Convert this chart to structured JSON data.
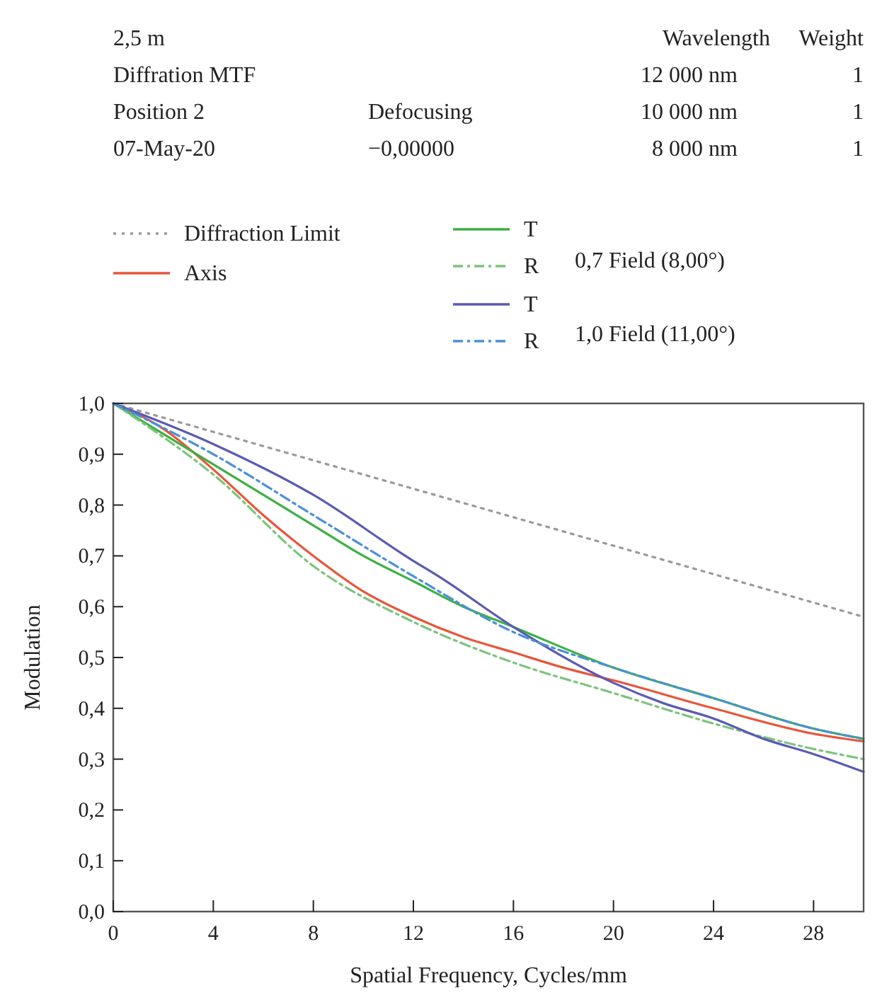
{
  "chart_data": {
    "type": "line",
    "xlabel": "Spatial Frequency, Cycles/mm",
    "ylabel": "Modulation",
    "annotations": [
      "2,5 m",
      "Wavelength",
      "Weight",
      "Diffration MTF",
      "12 000 nm",
      "1",
      "Position 2",
      "Defocusing",
      "10 000 nm",
      "1",
      "07-May-20",
      "−0,00000",
      "8 000 nm",
      "1",
      "0,7 Field (8,00°)",
      "1,0 Field (11,00°)"
    ],
    "xlim": [
      0,
      30
    ],
    "xticks": [
      0,
      4,
      8,
      12,
      16,
      20,
      24,
      28
    ],
    "ylim": [
      0,
      1
    ],
    "yticks": [
      {
        "value": 0,
        "label": "0,0"
      },
      {
        "value": 0.1,
        "label": "0,1"
      },
      {
        "value": 0.2,
        "label": "0,2"
      },
      {
        "value": 0.3,
        "label": "0,3"
      },
      {
        "value": 0.4,
        "label": "0,4"
      },
      {
        "value": 0.5,
        "label": "0,5"
      },
      {
        "value": 0.6,
        "label": "0,6"
      },
      {
        "value": 0.7,
        "label": "0,7"
      },
      {
        "value": 0.8,
        "label": "0,8"
      },
      {
        "value": 0.9,
        "label": "0,9"
      },
      {
        "value": 1,
        "label": "1,0"
      }
    ],
    "grid": false,
    "legend": "top",
    "marker": "none",
    "series": [
      {
        "name": "Diffraction Limit",
        "color": "#9a9a9a",
        "line_style": "dotted",
        "x": [
          0,
          10,
          20,
          30
        ],
        "values": [
          1,
          0.86,
          0.72,
          0.58
        ]
      },
      {
        "name": "Axis",
        "color": "#e8553a",
        "line_style": "solid",
        "x": [
          0,
          2,
          4,
          6,
          8,
          10,
          12,
          14,
          16,
          18,
          20,
          24,
          28,
          30
        ],
        "values": [
          1,
          0.95,
          0.87,
          0.78,
          0.7,
          0.63,
          0.58,
          0.54,
          0.51,
          0.48,
          0.455,
          0.4,
          0.35,
          0.335
        ]
      },
      {
        "name": "T",
        "color": "#3cb043",
        "line_style": "solid",
        "x": [
          0,
          4,
          8,
          10,
          12,
          14,
          16,
          20,
          24,
          28,
          30
        ],
        "values": [
          1,
          0.88,
          0.76,
          0.7,
          0.65,
          0.6,
          0.56,
          0.48,
          0.42,
          0.36,
          0.34
        ]
      },
      {
        "name": "R",
        "color": "#7cc47c",
        "line_style": "dashed",
        "x": [
          0,
          4,
          8,
          12,
          16,
          20,
          24,
          28,
          30
        ],
        "values": [
          1,
          0.86,
          0.68,
          0.57,
          0.49,
          0.43,
          0.37,
          0.32,
          0.3
        ]
      },
      {
        "name": "T",
        "color": "#5a5ab4",
        "line_style": "solid",
        "x": [
          0,
          4,
          8,
          12,
          13,
          16,
          20,
          22,
          24,
          26,
          28,
          30
        ],
        "values": [
          1,
          0.92,
          0.82,
          0.69,
          0.66,
          0.56,
          0.45,
          0.41,
          0.38,
          0.34,
          0.31,
          0.275
        ]
      },
      {
        "name": "R",
        "color": "#4a90d9",
        "line_style": "dashed",
        "x": [
          0,
          4,
          8,
          12,
          16,
          20,
          24,
          28,
          30
        ],
        "values": [
          1,
          0.9,
          0.78,
          0.66,
          0.55,
          0.48,
          0.42,
          0.36,
          0.34
        ]
      }
    ]
  }
}
